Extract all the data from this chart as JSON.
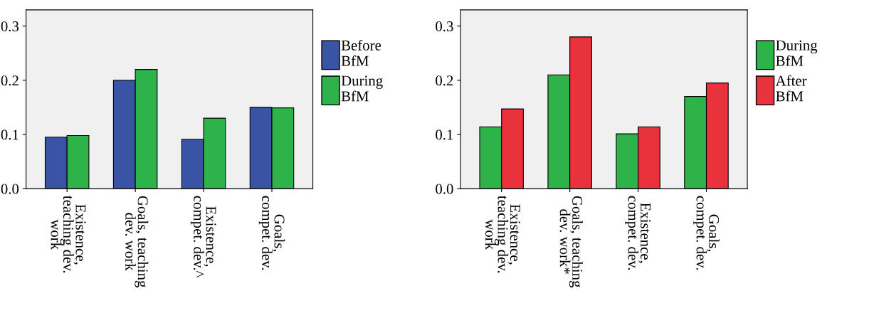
{
  "chart_data": [
    {
      "type": "bar",
      "categories": [
        "Existence,\nteaching dev.\nwork",
        "Goals, teaching\ndev. work",
        "Existence,\ncompet. dev.^",
        "Goals,\ncompet. dev."
      ],
      "series": [
        {
          "name": "Before\nBfM",
          "color": "#3a54a5",
          "values": [
            0.095,
            0.2,
            0.091,
            0.15
          ]
        },
        {
          "name": "During\nBfM",
          "color": "#2eb34b",
          "values": [
            0.098,
            0.22,
            0.13,
            0.149
          ]
        }
      ],
      "ylim": [
        0,
        0.33
      ],
      "yticks": [
        {
          "value": 0,
          "label": "0.0"
        },
        0.1,
        0.2,
        0.3
      ],
      "grid": false,
      "legend": "right"
    },
    {
      "type": "bar",
      "categories": [
        "Existence,\nteaching dev.\nwork",
        "Goals, teaching\ndev. work*",
        "Existence,\ncompet. dev.",
        "Goals,\ncompet. dev."
      ],
      "series": [
        {
          "name": "During\nBfM",
          "color": "#2eb34b",
          "values": [
            0.114,
            0.21,
            0.101,
            0.17
          ]
        },
        {
          "name": "After\nBfM",
          "color": "#e8323c",
          "values": [
            0.147,
            0.28,
            0.114,
            0.195
          ]
        }
      ],
      "ylim": [
        0,
        0.33
      ],
      "yticks": [
        {
          "value": 0,
          "label": "0.0"
        },
        0.1,
        0.2,
        0.3
      ],
      "grid": false,
      "legend": "right"
    }
  ]
}
